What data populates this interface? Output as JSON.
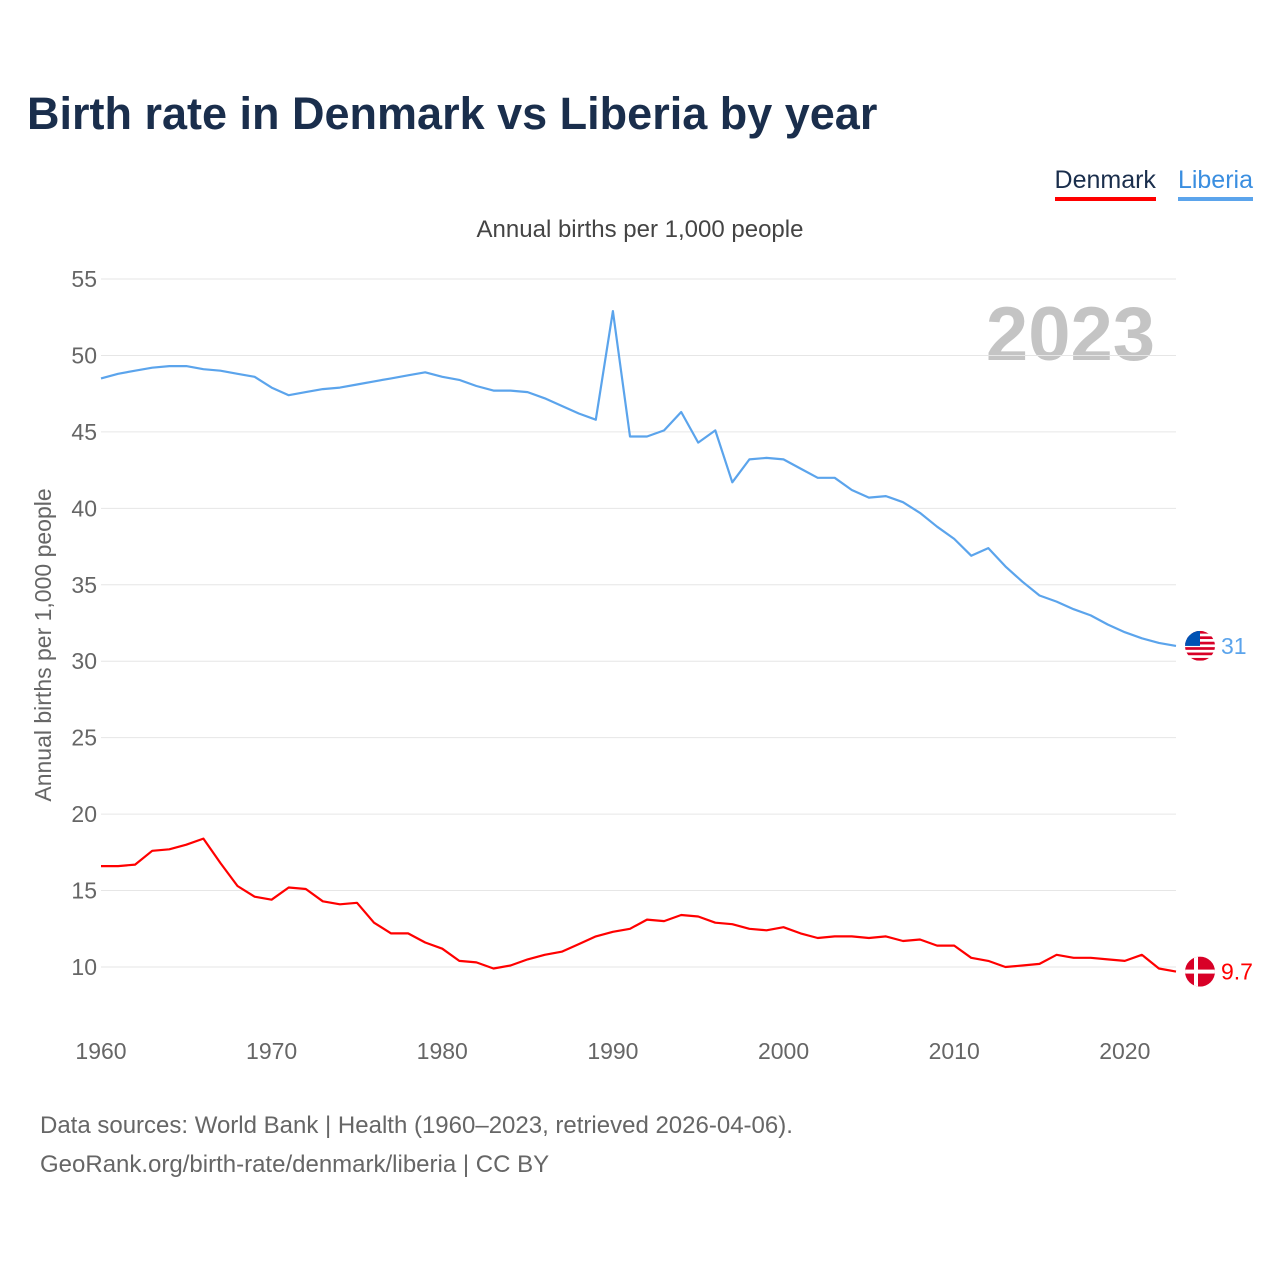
{
  "title": "Birth rate in Denmark vs Liberia by year",
  "legend": [
    {
      "label": "Denmark",
      "color": "#ff0000",
      "text_color": "#1a2e4c"
    },
    {
      "label": "Liberia",
      "color": "#5ba4ec",
      "text_color": "#3a8ee0"
    }
  ],
  "source": {
    "line1": "Data sources: World Bank | Health (1960–2023, retrieved 2026-04-06).",
    "line2": "GeoRank.org/birth-rate/denmark/liberia | CC BY"
  },
  "chart_data": {
    "type": "line",
    "title": "Birth rate in Denmark vs Liberia by year",
    "subtitle": "Annual births per 1,000 people",
    "ylabel": "Annual births per 1,000 people",
    "xlabel": "",
    "year_watermark": "2023",
    "xlim": [
      1960,
      2023
    ],
    "ylim": [
      7,
      55
    ],
    "x_ticks": [
      1960,
      1970,
      1980,
      1990,
      2000,
      2010,
      2020
    ],
    "y_ticks": [
      10,
      15,
      20,
      25,
      30,
      35,
      40,
      45,
      50,
      55
    ],
    "grid": true,
    "legend_position": "top-right",
    "x": [
      1960,
      1961,
      1962,
      1963,
      1964,
      1965,
      1966,
      1967,
      1968,
      1969,
      1970,
      1971,
      1972,
      1973,
      1974,
      1975,
      1976,
      1977,
      1978,
      1979,
      1980,
      1981,
      1982,
      1983,
      1984,
      1985,
      1986,
      1987,
      1988,
      1989,
      1990,
      1991,
      1992,
      1993,
      1994,
      1995,
      1996,
      1997,
      1998,
      1999,
      2000,
      2001,
      2002,
      2003,
      2004,
      2005,
      2006,
      2007,
      2008,
      2009,
      2010,
      2011,
      2012,
      2013,
      2014,
      2015,
      2016,
      2017,
      2018,
      2019,
      2020,
      2021,
      2022,
      2023
    ],
    "series": [
      {
        "name": "Liberia",
        "color": "#5ba4ec",
        "end_label": "31",
        "values": [
          48.5,
          48.8,
          49.0,
          49.2,
          49.3,
          49.3,
          49.1,
          49.0,
          48.8,
          48.6,
          47.9,
          47.4,
          47.6,
          47.8,
          47.9,
          48.1,
          48.3,
          48.5,
          48.7,
          48.9,
          48.6,
          48.4,
          48.0,
          47.7,
          47.7,
          47.6,
          47.2,
          46.7,
          46.2,
          45.8,
          52.9,
          44.7,
          44.7,
          45.1,
          46.3,
          44.3,
          45.1,
          41.7,
          43.2,
          43.3,
          43.2,
          42.6,
          42.0,
          42.0,
          41.2,
          40.7,
          40.8,
          40.4,
          39.7,
          38.8,
          38.0,
          36.9,
          37.4,
          36.2,
          35.2,
          34.3,
          33.9,
          33.4,
          33.0,
          32.4,
          31.9,
          31.5,
          31.2,
          31.0
        ]
      },
      {
        "name": "Denmark",
        "color": "#ff0000",
        "end_label": "9.7",
        "values": [
          16.6,
          16.6,
          16.7,
          17.6,
          17.7,
          18.0,
          18.4,
          16.8,
          15.3,
          14.6,
          14.4,
          15.2,
          15.1,
          14.3,
          14.1,
          14.2,
          12.9,
          12.2,
          12.2,
          11.6,
          11.2,
          10.4,
          10.3,
          9.9,
          10.1,
          10.5,
          10.8,
          11.0,
          11.5,
          12.0,
          12.3,
          12.5,
          13.1,
          13.0,
          13.4,
          13.3,
          12.9,
          12.8,
          12.5,
          12.4,
          12.6,
          12.2,
          11.9,
          12.0,
          12.0,
          11.9,
          12.0,
          11.7,
          11.8,
          11.4,
          11.4,
          10.6,
          10.4,
          10.0,
          10.1,
          10.2,
          10.8,
          10.6,
          10.6,
          10.5,
          10.4,
          10.8,
          9.9,
          9.7
        ]
      }
    ]
  }
}
